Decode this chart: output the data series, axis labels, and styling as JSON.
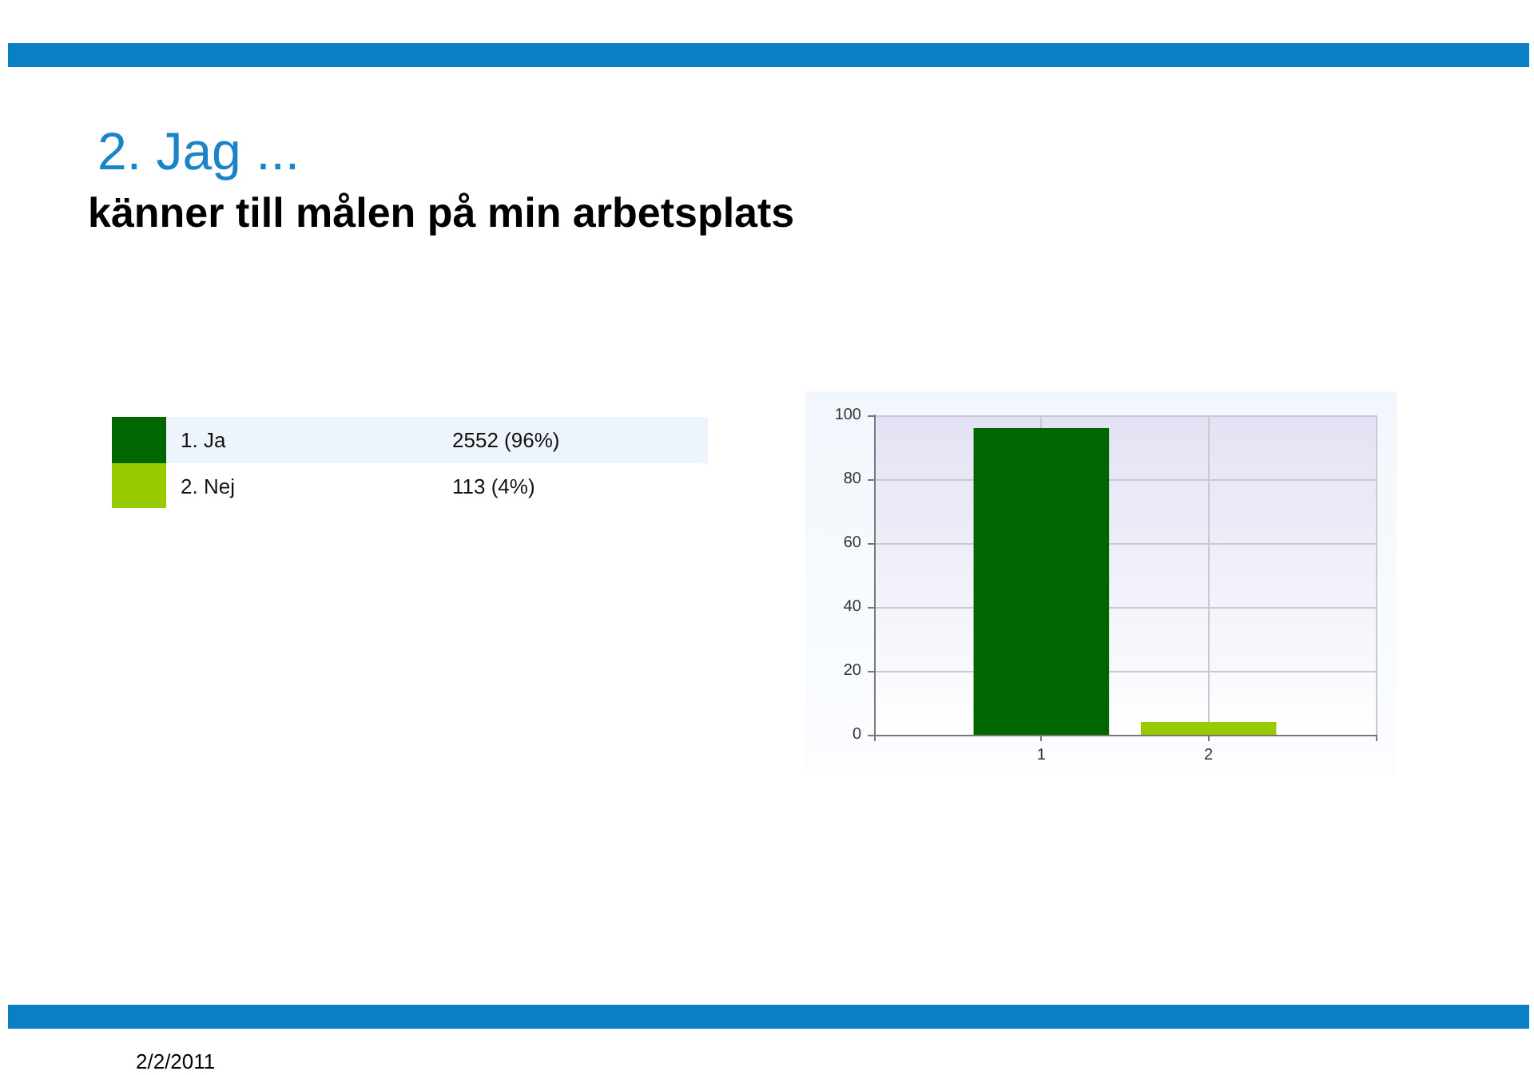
{
  "chart_data": {
    "type": "bar",
    "title": "2. Jag ...",
    "subtitle": "känner till målen på min arbetsplats",
    "x": [
      1,
      2
    ],
    "xlim": [
      0,
      3
    ],
    "xticks": [
      {
        "value": 0,
        "label": null
      },
      1,
      2,
      {
        "value": 3,
        "label": null
      }
    ],
    "series": [
      {
        "name": "1. Ja",
        "color": "#006600",
        "values": [
          96,
          null
        ]
      },
      {
        "name": "2. Nej",
        "color": "#99cc00",
        "values": [
          null,
          4
        ]
      }
    ],
    "ylim": [
      0,
      100
    ],
    "yticks": [
      0,
      20,
      40,
      60,
      80,
      100
    ],
    "grid": true,
    "legend": "left",
    "annotations": [
      "2552 (96%)",
      "113 (4%)",
      "2/2/2011"
    ]
  }
}
